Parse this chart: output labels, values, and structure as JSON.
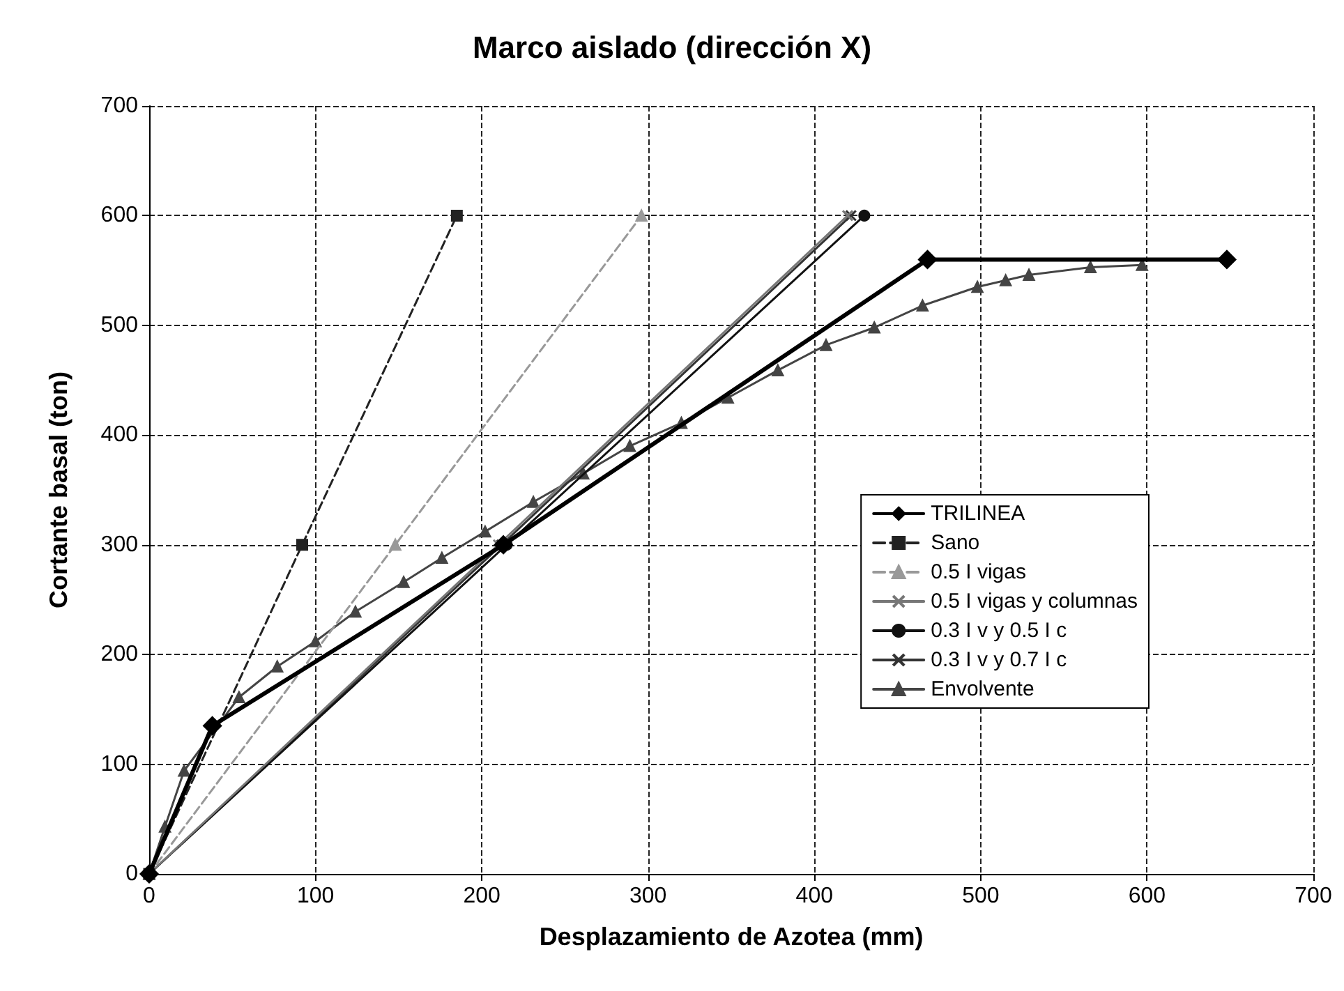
{
  "chart_data": {
    "type": "line",
    "title": "Marco aislado (dirección X)",
    "xlabel": "Desplazamiento de Azotea (mm)",
    "ylabel": "Cortante basal (ton)",
    "xlim": [
      0,
      700
    ],
    "xticks": [
      0,
      100,
      200,
      300,
      400,
      500,
      600,
      700
    ],
    "ylim": [
      0,
      700
    ],
    "yticks": [
      0,
      100,
      200,
      300,
      400,
      500,
      600,
      700
    ],
    "grid": true,
    "legend": "right",
    "series": [
      {
        "name": "TRILINEA",
        "color": "#000000",
        "marker": "diamond",
        "line_style": "solid",
        "x": [
          0,
          38,
          213,
          468,
          648
        ],
        "values": [
          0,
          135,
          300,
          560,
          560
        ]
      },
      {
        "name": "Sano",
        "color": "#222222",
        "marker": "square",
        "line_style": "dashed",
        "x": [
          0,
          92,
          185
        ],
        "values": [
          0,
          300,
          600
        ]
      },
      {
        "name": "0.5 I vigas",
        "color": "#999999",
        "marker": "triangle",
        "line_style": "dashed",
        "x": [
          0,
          148,
          296
        ],
        "values": [
          0,
          300,
          600
        ]
      },
      {
        "name": "0.5 I vigas y columnas",
        "color": "#777777",
        "marker": "cross",
        "line_style": "solid",
        "x": [
          0,
          210,
          420
        ],
        "values": [
          0,
          300,
          600
        ]
      },
      {
        "name": "0.3 I v y 0.5 I c",
        "color": "#111111",
        "marker": "circle",
        "line_style": "solid",
        "x": [
          0,
          215,
          430
        ],
        "values": [
          0,
          300,
          600
        ]
      },
      {
        "name": "0.3 I v y 0.7 I c",
        "color": "#333333",
        "marker": "cross",
        "line_style": "solid",
        "x": [
          0,
          212,
          422
        ],
        "values": [
          0,
          300,
          600
        ]
      },
      {
        "name": "Envolvente",
        "color": "#444444",
        "marker": "triangle",
        "line_style": "solid",
        "x": [
          0,
          9.5,
          21,
          54,
          77,
          100,
          124,
          153,
          176,
          202,
          231,
          261,
          289,
          320,
          348,
          378,
          407,
          436,
          465,
          498,
          515,
          529,
          566,
          597
        ],
        "values": [
          0,
          43,
          94,
          161,
          189,
          212,
          239,
          266,
          288,
          312,
          339,
          365,
          390,
          411,
          434,
          459,
          482,
          498,
          518,
          535,
          541,
          546,
          553,
          555
        ]
      }
    ]
  }
}
